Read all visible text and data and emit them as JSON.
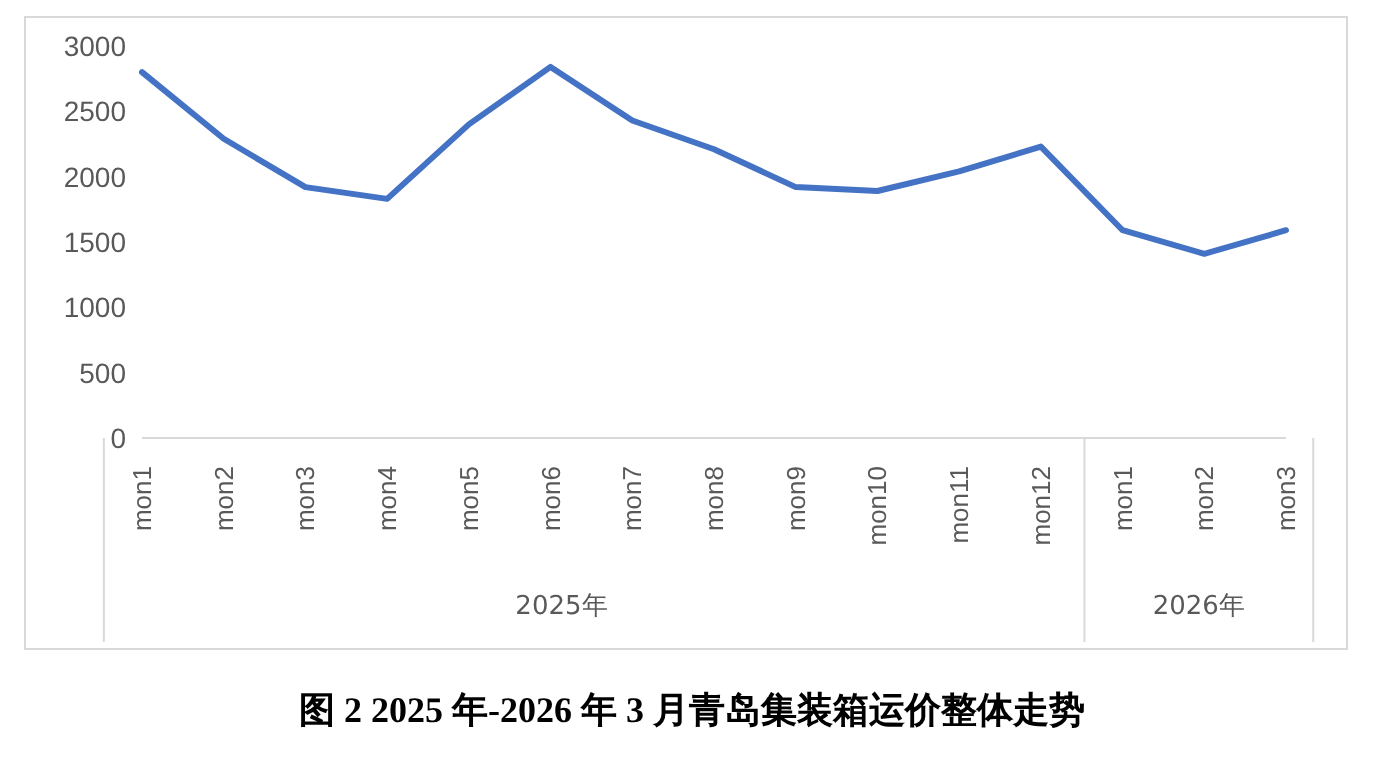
{
  "chart_data": {
    "type": "line",
    "title": "图 2 2025 年-2026 年 3 月青岛集装箱运价整体走势",
    "categories": [
      "mon1",
      "mon2",
      "mon3",
      "mon4",
      "mon5",
      "mon6",
      "mon7",
      "mon8",
      "mon9",
      "mon10",
      "mon11",
      "mon12",
      "mon1",
      "mon2",
      "mon3"
    ],
    "series": [
      {
        "color": "#4472c4",
        "values": [
          2800,
          2290,
          1920,
          1830,
          2400,
          2840,
          2430,
          2210,
          1920,
          1890,
          2040,
          2230,
          1590,
          1410,
          1590
        ]
      }
    ],
    "ylim": [
      0,
      3000
    ],
    "yticks": [
      0,
      500,
      1000,
      1500,
      2000,
      2500,
      3000
    ],
    "annotations": [
      "2025年",
      "2026年"
    ],
    "grid": false,
    "legend": false,
    "marker": "none",
    "line_style": "solid"
  }
}
